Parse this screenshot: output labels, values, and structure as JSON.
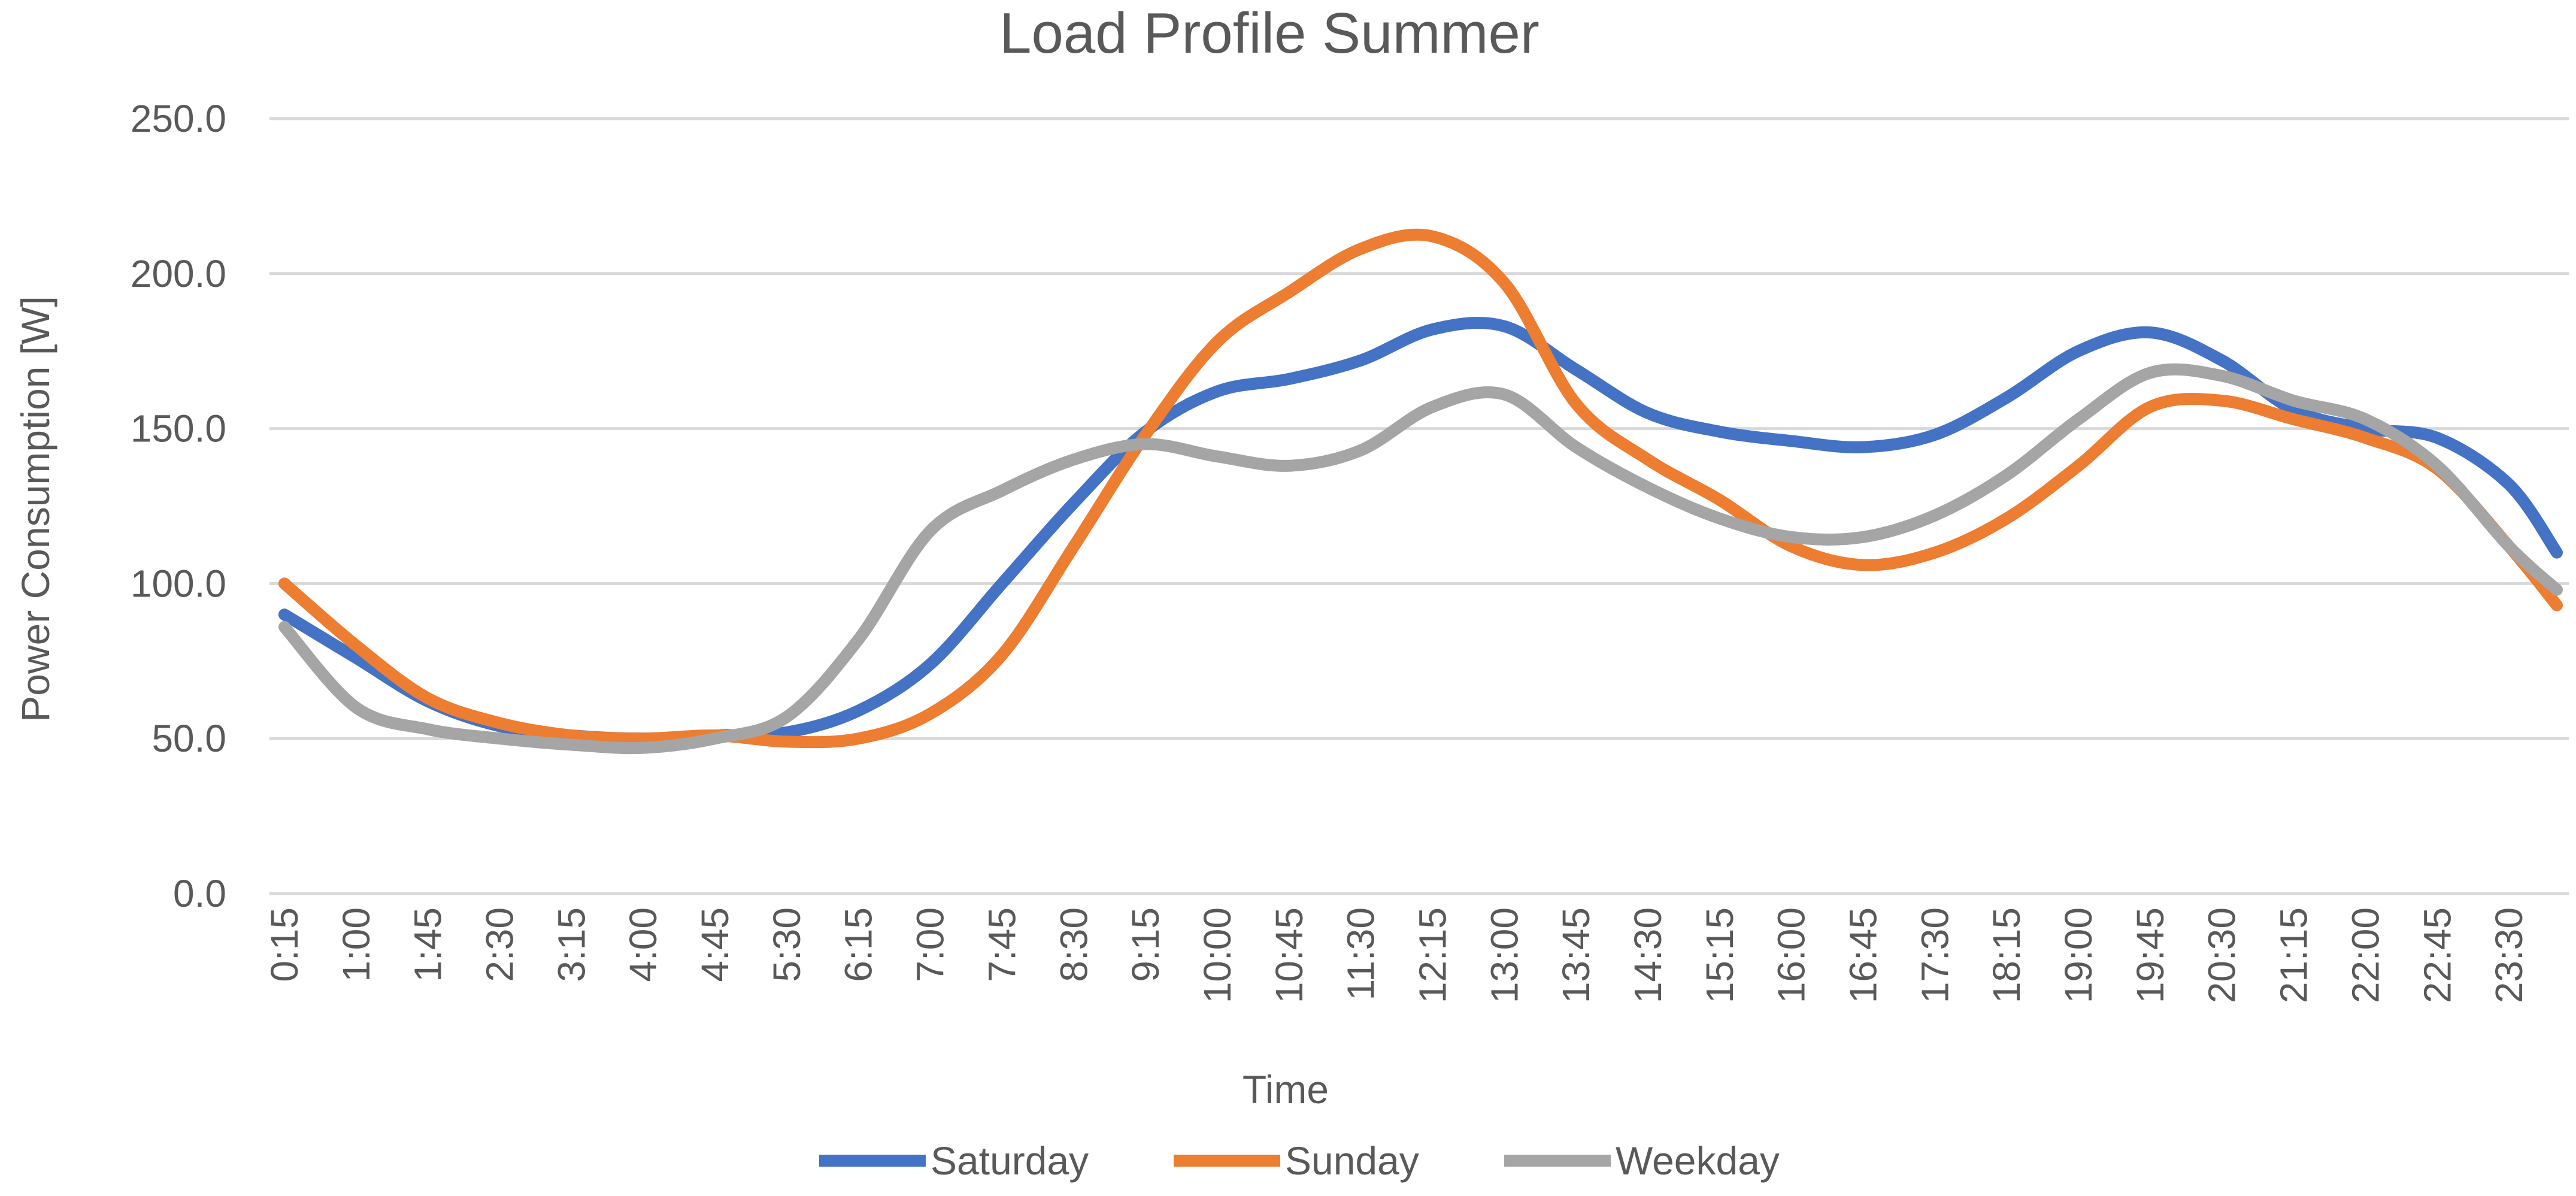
{
  "chart_data": {
    "type": "line",
    "title": "Load Profile Summer",
    "xlabel": "Time",
    "ylabel": "Power Consumption [W]",
    "ylim": [
      0,
      250
    ],
    "y_ticks": [
      "0.0",
      "50.0",
      "100.0",
      "150.0",
      "200.0",
      "250.0"
    ],
    "x_tick_labels": [
      "0:15",
      "1:00",
      "1:45",
      "2:30",
      "3:15",
      "4:00",
      "4:45",
      "5:30",
      "6:15",
      "7:00",
      "7:45",
      "8:30",
      "9:15",
      "10:00",
      "10:45",
      "11:30",
      "12:15",
      "13:00",
      "13:45",
      "14:30",
      "15:15",
      "16:00",
      "16:45",
      "17:30",
      "18:15",
      "19:00",
      "19:45",
      "20:30",
      "21:15",
      "22:00",
      "22:45",
      "23:30"
    ],
    "grid": true,
    "legend_position": "bottom",
    "x_hours": [
      0.25,
      1,
      1.75,
      2.5,
      3.25,
      4,
      4.75,
      5.5,
      6.25,
      7,
      7.75,
      8.5,
      9.25,
      10,
      10.75,
      11.5,
      12.25,
      13,
      13.75,
      14.5,
      15.25,
      16,
      16.75,
      17.5,
      18.25,
      19,
      19.75,
      20.5,
      21.25,
      22,
      22.75,
      23.5,
      24
    ],
    "series": [
      {
        "name": "Saturday",
        "color": "#4472c4",
        "values": [
          90,
          76,
          62,
          54,
          51,
          50,
          51,
          52,
          59,
          74,
          100,
          126,
          149,
          162,
          166,
          172,
          182,
          183,
          169,
          155,
          149,
          146,
          144,
          148,
          160,
          175,
          181,
          172,
          156,
          150,
          147,
          132,
          110
        ]
      },
      {
        "name": "Sunday",
        "color": "#ed7d31",
        "values": [
          100,
          80,
          63,
          55,
          51,
          50,
          51,
          49,
          50,
          58,
          77,
          112,
          148,
          178,
          194,
          208,
          212,
          197,
          158,
          140,
          127,
          112,
          106,
          110,
          121,
          138,
          157,
          159,
          153,
          147,
          137,
          112,
          93
        ]
      },
      {
        "name": "Weekday",
        "color": "#a5a5a5",
        "values": [
          86,
          60,
          53,
          50,
          48,
          47,
          50,
          57,
          82,
          117,
          130,
          140,
          145,
          141,
          138,
          143,
          157,
          161,
          144,
          131,
          121,
          115,
          115,
          122,
          135,
          153,
          168,
          167,
          159,
          153,
          138,
          112,
          98
        ]
      }
    ]
  }
}
